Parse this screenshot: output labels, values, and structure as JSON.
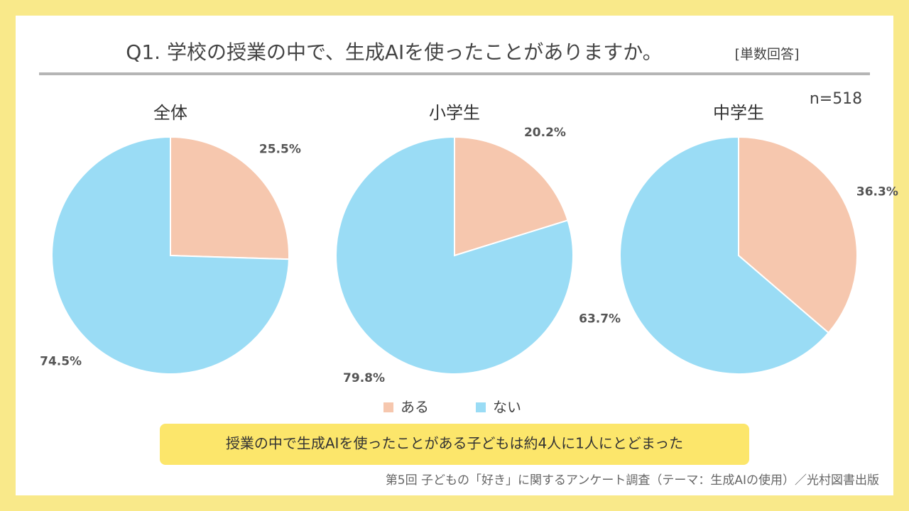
{
  "title": "Q1. 学校の授業の中で、生成AIを使ったことがありますか。",
  "subtitle": "[単数回答]",
  "sample": "n=518",
  "conclusion": "授業の中で生成AIを使ったことがある子どもは約4人に1人にとどまった",
  "source": "第5回 子どもの「好き」に関するアンケート調査（テーマ：生成AIの使用）／光村図書出版",
  "chart_data": [
    {
      "type": "pie",
      "title": "全体",
      "categories": [
        "ある",
        "ない"
      ],
      "colors": [
        "#f6c7ae",
        "#9adcf5"
      ],
      "values": [
        25.5,
        74.5
      ],
      "value_labels": [
        "25.5%",
        "74.5%"
      ]
    },
    {
      "type": "pie",
      "title": "小学生",
      "categories": [
        "ある",
        "ない"
      ],
      "colors": [
        "#f6c7ae",
        "#9adcf5"
      ],
      "values": [
        20.2,
        79.8
      ],
      "value_labels": [
        "20.2%",
        "79.8%"
      ]
    },
    {
      "type": "pie",
      "title": "中学生",
      "categories": [
        "ある",
        "ない"
      ],
      "colors": [
        "#f6c7ae",
        "#9adcf5"
      ],
      "values": [
        36.3,
        63.7
      ],
      "value_labels": [
        "36.3%",
        "63.7%"
      ]
    }
  ]
}
